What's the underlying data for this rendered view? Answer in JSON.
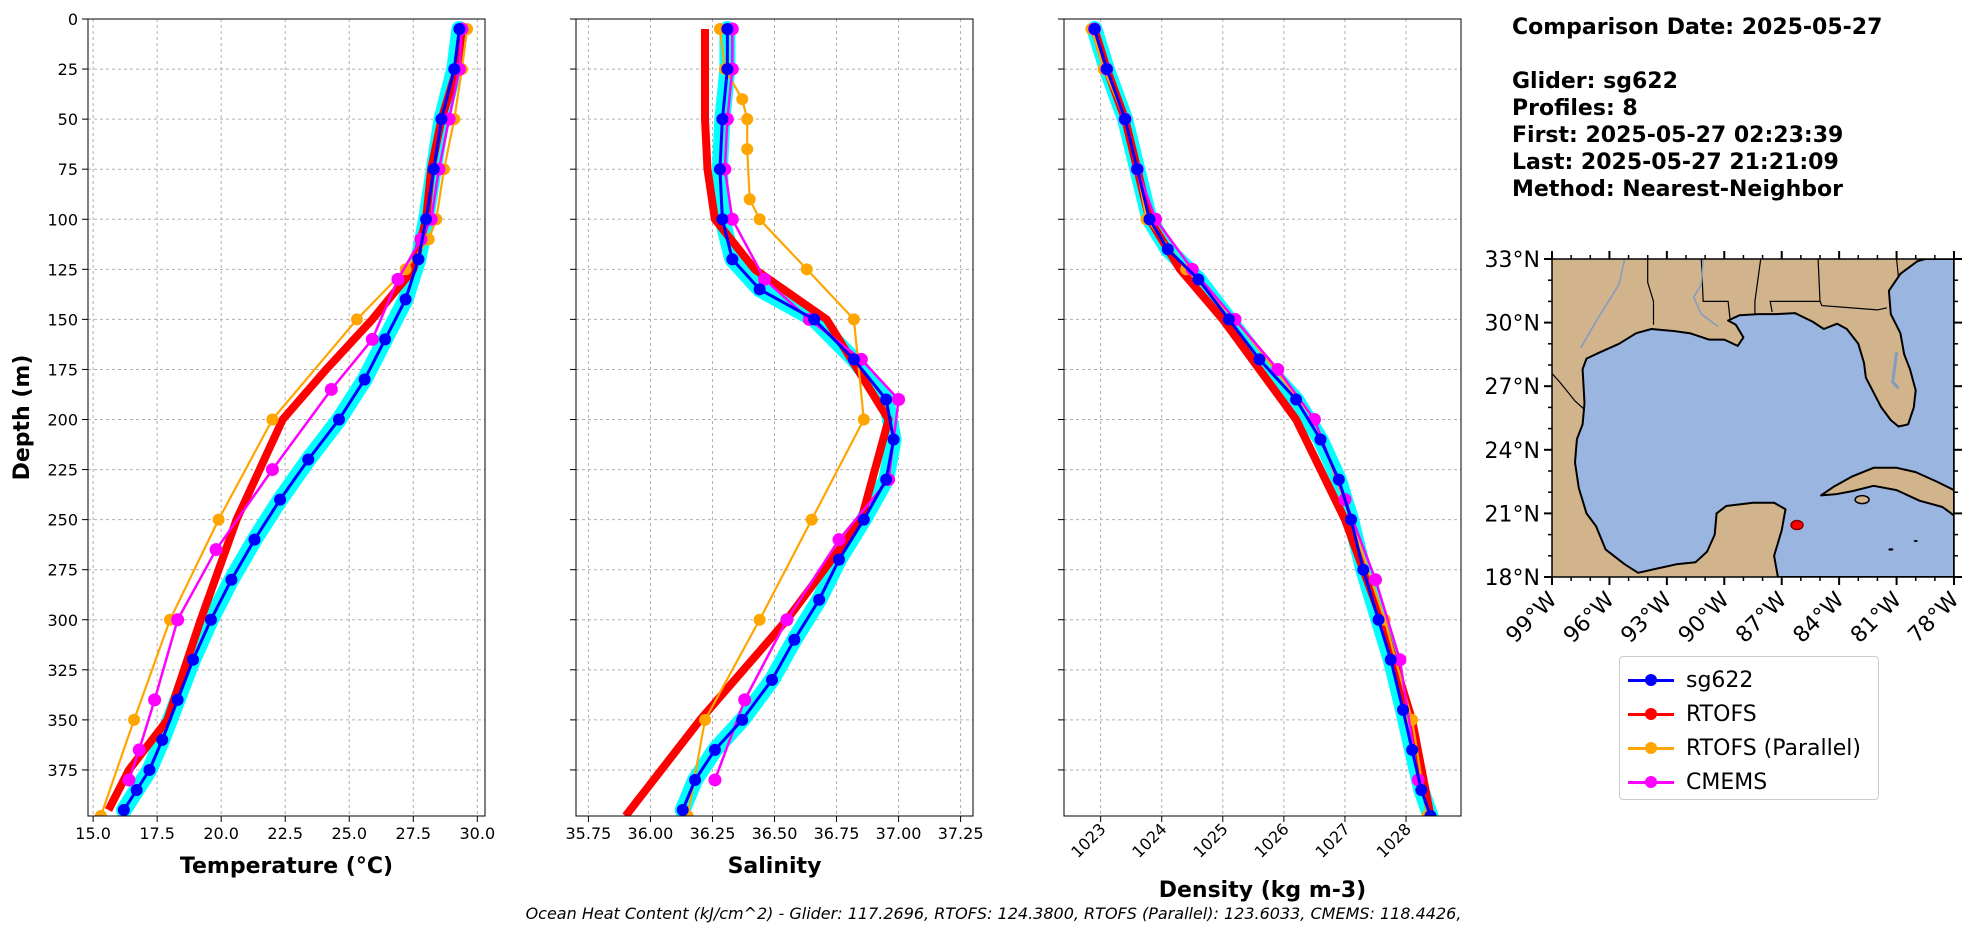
{
  "chart_data": [
    {
      "type": "line",
      "xlabel": "Temperature (°C)",
      "ylabel": "Depth (m)",
      "xlim": [
        14.8,
        30.3
      ],
      "ylim": [
        0,
        398
      ],
      "y_inverted": true,
      "xticks": [
        15.0,
        17.5,
        20.0,
        22.5,
        25.0,
        27.5,
        30.0
      ],
      "xtick_labels": [
        "15.0",
        "17.5",
        "20.0",
        "22.5",
        "25.0",
        "27.5",
        "30.0"
      ],
      "yticks": [
        0,
        25,
        50,
        75,
        100,
        125,
        150,
        175,
        200,
        225,
        250,
        275,
        300,
        325,
        350,
        375
      ],
      "grid": true,
      "series": [
        {
          "name": "sg622",
          "x": [
            29.3,
            29.1,
            28.6,
            28.3,
            28.0,
            27.7,
            27.2,
            26.4,
            25.6,
            24.6,
            23.4,
            22.3,
            21.3,
            20.4,
            19.6,
            18.9,
            18.3,
            17.7,
            17.2,
            16.7,
            16.2
          ],
          "y": [
            5,
            25,
            50,
            75,
            100,
            120,
            140,
            160,
            180,
            200,
            220,
            240,
            260,
            280,
            300,
            320,
            340,
            360,
            375,
            385,
            395
          ]
        },
        {
          "name": "RTOFS",
          "x": [
            29.4,
            29.2,
            28.6,
            28.2,
            28.0,
            27.5,
            25.9,
            24.1,
            22.4,
            20.6,
            19.2,
            17.9,
            16.4,
            15.6
          ],
          "y": [
            5,
            25,
            50,
            75,
            100,
            125,
            150,
            175,
            200,
            250,
            300,
            350,
            375,
            395
          ]
        },
        {
          "name": "RTOFS (Parallel)",
          "x": [
            29.6,
            29.4,
            29.1,
            28.7,
            28.4,
            28.1,
            27.2,
            25.3,
            22.0,
            19.9,
            18.0,
            16.6,
            15.3
          ],
          "y": [
            5,
            25,
            50,
            75,
            100,
            110,
            125,
            150,
            200,
            250,
            300,
            350,
            398
          ]
        },
        {
          "name": "CMEMS",
          "x": [
            29.4,
            29.3,
            28.9,
            28.5,
            28.2,
            27.8,
            26.9,
            25.9,
            24.3,
            22.0,
            19.8,
            18.3,
            17.4,
            16.8,
            16.4
          ],
          "y": [
            5,
            25,
            50,
            75,
            100,
            110,
            130,
            160,
            185,
            225,
            265,
            300,
            340,
            365,
            380
          ]
        }
      ]
    },
    {
      "type": "line",
      "xlabel": "Salinity",
      "ylabel": "",
      "xlim": [
        35.7,
        37.3
      ],
      "ylim": [
        0,
        398
      ],
      "y_inverted": true,
      "xticks": [
        35.75,
        36.0,
        36.25,
        36.5,
        36.75,
        37.0,
        37.25
      ],
      "xtick_labels": [
        "35.75",
        "36.00",
        "36.25",
        "36.50",
        "36.75",
        "37.00",
        "37.25"
      ],
      "yticks": [
        0,
        25,
        50,
        75,
        100,
        125,
        150,
        175,
        200,
        225,
        250,
        275,
        300,
        325,
        350,
        375
      ],
      "grid": true,
      "series": [
        {
          "name": "sg622",
          "x": [
            36.31,
            36.31,
            36.29,
            36.28,
            36.29,
            36.33,
            36.44,
            36.66,
            36.82,
            36.95,
            36.98,
            36.95,
            36.86,
            36.76,
            36.68,
            36.58,
            36.49,
            36.37,
            36.26,
            36.18,
            36.13
          ],
          "y": [
            5,
            25,
            50,
            75,
            100,
            120,
            135,
            150,
            170,
            190,
            210,
            230,
            250,
            270,
            290,
            310,
            330,
            350,
            365,
            380,
            395
          ]
        },
        {
          "name": "RTOFS",
          "x": [
            36.22,
            36.22,
            36.22,
            36.23,
            36.26,
            36.42,
            36.71,
            36.96,
            36.85,
            36.55,
            36.2,
            35.9
          ],
          "y": [
            5,
            25,
            50,
            75,
            100,
            125,
            150,
            200,
            250,
            300,
            350,
            398
          ]
        },
        {
          "name": "RTOFS (Parallel)",
          "x": [
            36.28,
            36.3,
            36.37,
            36.39,
            36.39,
            36.4,
            36.44,
            36.63,
            36.82,
            36.86,
            36.65,
            36.44,
            36.22,
            36.15
          ],
          "y": [
            5,
            25,
            40,
            50,
            65,
            90,
            100,
            125,
            150,
            200,
            250,
            300,
            350,
            398
          ]
        },
        {
          "name": "CMEMS",
          "x": [
            36.33,
            36.33,
            36.31,
            36.3,
            36.33,
            36.46,
            36.64,
            36.85,
            37.0,
            36.96,
            36.76,
            36.55,
            36.38,
            36.26
          ],
          "y": [
            5,
            25,
            50,
            75,
            100,
            130,
            150,
            170,
            190,
            230,
            260,
            300,
            340,
            380
          ]
        }
      ]
    },
    {
      "type": "line",
      "xlabel": "Density (kg m-3)",
      "ylabel": "",
      "xlim": [
        1022.4,
        1028.9
      ],
      "ylim": [
        0,
        398
      ],
      "y_inverted": true,
      "xticks": [
        1023,
        1024,
        1025,
        1026,
        1027,
        1028
      ],
      "xtick_labels": [
        "1023",
        "1024",
        "1025",
        "1026",
        "1027",
        "1028"
      ],
      "yticks": [
        0,
        25,
        50,
        75,
        100,
        125,
        150,
        175,
        200,
        225,
        250,
        275,
        300,
        325,
        350,
        375
      ],
      "grid": true,
      "series": [
        {
          "name": "sg622",
          "x": [
            1022.9,
            1023.1,
            1023.4,
            1023.6,
            1023.8,
            1024.1,
            1024.6,
            1025.1,
            1025.6,
            1026.2,
            1026.6,
            1026.9,
            1027.1,
            1027.3,
            1027.55,
            1027.75,
            1027.95,
            1028.1,
            1028.25,
            1028.4
          ],
          "y": [
            5,
            25,
            50,
            75,
            100,
            115,
            130,
            150,
            170,
            190,
            210,
            230,
            250,
            275,
            300,
            320,
            345,
            365,
            385,
            398
          ]
        },
        {
          "name": "RTOFS",
          "x": [
            1022.9,
            1023.1,
            1023.4,
            1023.6,
            1023.8,
            1024.3,
            1025.0,
            1026.2,
            1027.0,
            1027.6,
            1028.1,
            1028.4
          ],
          "y": [
            5,
            25,
            50,
            75,
            100,
            125,
            150,
            200,
            250,
            300,
            350,
            398
          ]
        },
        {
          "name": "RTOFS (Parallel)",
          "x": [
            1022.85,
            1023.05,
            1023.4,
            1023.6,
            1023.75,
            1024.4,
            1025.2,
            1026.5,
            1027.1,
            1027.65,
            1028.1,
            1028.35
          ],
          "y": [
            5,
            25,
            50,
            75,
            100,
            125,
            150,
            200,
            250,
            300,
            350,
            398
          ]
        },
        {
          "name": "CMEMS",
          "x": [
            1022.9,
            1023.1,
            1023.4,
            1023.6,
            1023.9,
            1024.5,
            1025.2,
            1025.9,
            1026.5,
            1027.0,
            1027.5,
            1027.9,
            1028.2
          ],
          "y": [
            5,
            25,
            50,
            75,
            100,
            125,
            150,
            175,
            200,
            240,
            280,
            320,
            380
          ]
        }
      ]
    }
  ],
  "series_colors": {
    "sg622": "#0000ff",
    "sg622_band": "#00ffff",
    "RTOFS": "#ff0000",
    "RTOFS (Parallel)": "#ffa500",
    "CMEMS": "#ff00ff"
  },
  "map": {
    "lat_ticks": [
      "33°N",
      "30°N",
      "27°N",
      "24°N",
      "21°N",
      "18°N"
    ],
    "lon_ticks": [
      "99°W",
      "96°W",
      "93°W",
      "90°W",
      "87°W",
      "84°W",
      "81°W",
      "78°W"
    ],
    "land_color": "#d2b48c",
    "water_color": "#9ab5e0",
    "glider_marker": "glider-location"
  },
  "info": {
    "comparison_date": "Comparison Date: 2025-05-27",
    "glider": "Glider: sg622",
    "profiles": "Profiles: 8",
    "first": "First: 2025-05-27 02:23:39",
    "last": "Last: 2025-05-27 21:21:09",
    "method": "Method: Nearest-Neighbor"
  },
  "legend": {
    "items": [
      {
        "label": "sg622"
      },
      {
        "label": "RTOFS"
      },
      {
        "label": "RTOFS (Parallel)"
      },
      {
        "label": "CMEMS"
      }
    ]
  },
  "footer": "Ocean Heat Content (kJ/cm^2) - Glider: 117.2696,  RTOFS: 124.3800,  RTOFS (Parallel): 123.6033,  CMEMS: 118.4426,"
}
